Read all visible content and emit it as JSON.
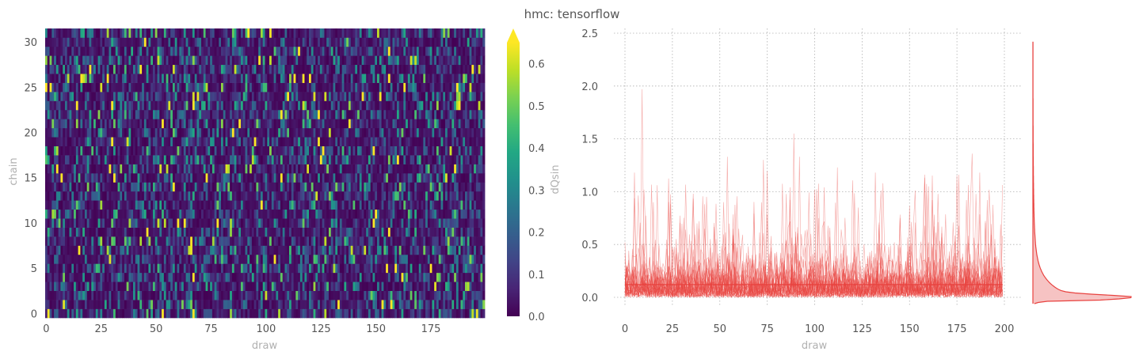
{
  "figure": {
    "title": "hmc: tensorflow"
  },
  "chart_data": [
    {
      "type": "heatmap",
      "xlabel": "draw",
      "ylabel": "chain",
      "xlim": [
        0,
        199
      ],
      "ylim": [
        0,
        31
      ],
      "x_ticks": [
        0,
        25,
        50,
        75,
        100,
        125,
        150,
        175
      ],
      "y_ticks": [
        0,
        5,
        10,
        15,
        20,
        25,
        30
      ],
      "n_draws": 200,
      "n_chains": 32,
      "colormap": "viridis",
      "value_range": [
        0.0,
        0.65
      ],
      "colorbar": {
        "label": "dQsin",
        "ticks": [
          0.0,
          0.1,
          0.2,
          0.3,
          0.4,
          0.5,
          0.6
        ],
        "tick_labels": [
          "0.0",
          "0.1",
          "0.2",
          "0.3",
          "0.4",
          "0.5",
          "0.6"
        ],
        "extend": "max"
      },
      "typical_value": 0.12
    },
    {
      "type": "line",
      "xlabel": "draw",
      "ylabel": "",
      "xlim": [
        0,
        200
      ],
      "ylim": [
        -0.1,
        2.5
      ],
      "x_ticks": [
        0,
        25,
        50,
        75,
        100,
        125,
        150,
        175,
        200
      ],
      "y_ticks": [
        0.0,
        0.5,
        1.0,
        1.5,
        2.0,
        2.5
      ],
      "y_tick_labels": [
        "0.0",
        "0.5",
        "1.0",
        "1.5",
        "2.0",
        "2.5"
      ],
      "grid": true,
      "color": "#e8423f",
      "n_series": 32,
      "mean_value": 0.12,
      "notable_peaks": [
        {
          "x": 9,
          "y": 1.97
        },
        {
          "x": 54,
          "y": 1.33
        },
        {
          "x": 73,
          "y": 1.3
        },
        {
          "x": 89,
          "y": 1.55
        },
        {
          "x": 92,
          "y": 1.33
        },
        {
          "x": 112,
          "y": 1.23
        },
        {
          "x": 183,
          "y": 1.36
        }
      ]
    },
    {
      "type": "area",
      "description_of_axes": "kernel density of draws, shares y axis with trace plot",
      "orientation": "horizontal",
      "color": "#e8423f",
      "fill": "#f6c3c3",
      "y_range": [
        -0.06,
        2.42
      ],
      "mode_y": 0.0
    }
  ]
}
